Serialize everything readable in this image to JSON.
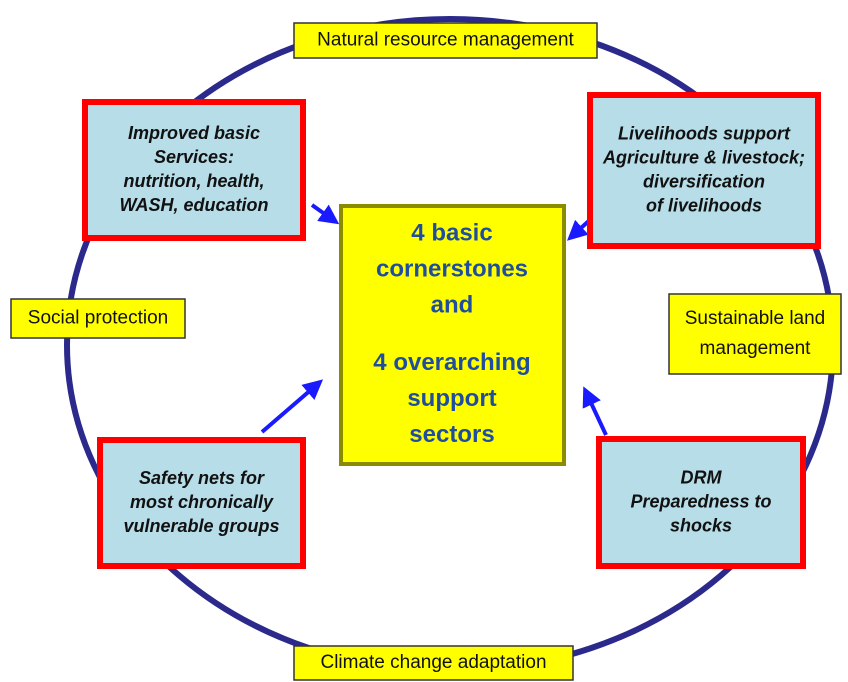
{
  "center": {
    "lines": [
      "4 basic",
      "cornerstones",
      "and",
      "4 overarching",
      "support",
      "sectors"
    ]
  },
  "cornerstones": [
    {
      "lines": [
        "Improved basic",
        "Services:",
        "nutrition, health,",
        "WASH,  education"
      ]
    },
    {
      "lines": [
        "Livelihoods support",
        "Agriculture & livestock;",
        "diversification",
        "of livelihoods"
      ]
    },
    {
      "lines": [
        "Safety nets for",
        "most chronically",
        "vulnerable groups"
      ]
    },
    {
      "lines": [
        "DRM",
        "Preparedness to",
        "shocks"
      ]
    }
  ],
  "support_sectors": [
    {
      "lines": [
        "Natural resource management"
      ]
    },
    {
      "lines": [
        "Social protection"
      ]
    },
    {
      "lines": [
        "Sustainable land",
        "management"
      ]
    },
    {
      "lines": [
        "Climate change adaptation"
      ]
    }
  ]
}
